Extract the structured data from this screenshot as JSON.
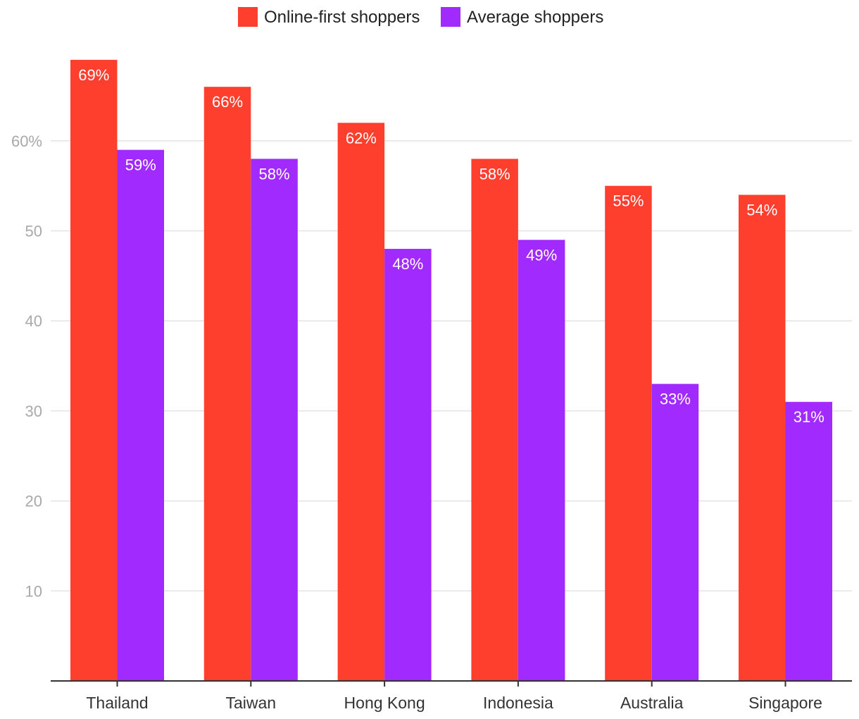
{
  "chart_data": {
    "type": "bar",
    "title": "",
    "xlabel": "",
    "ylabel": "",
    "categories": [
      "Thailand",
      "Taiwan",
      "Hong Kong",
      "Indonesia",
      "Australia",
      "Singapore"
    ],
    "series": [
      {
        "name": "Online-first shoppers",
        "color": "#ff3f2e",
        "values": [
          69,
          66,
          62,
          58,
          55,
          54
        ],
        "labels": [
          "69%",
          "66%",
          "62%",
          "58%",
          "55%",
          "54%"
        ]
      },
      {
        "name": "Average shoppers",
        "color": "#a12bff",
        "values": [
          59,
          58,
          48,
          49,
          33,
          31
        ],
        "labels": [
          "59%",
          "58%",
          "48%",
          "49%",
          "33%",
          "31%"
        ]
      }
    ],
    "yticks": [
      10,
      20,
      30,
      40,
      50,
      60
    ],
    "ytick_labels": [
      "10",
      "20",
      "30",
      "40",
      "50",
      "60%"
    ],
    "ylim": [
      0,
      75.6
    ],
    "grid": true,
    "legend_position": "top-center"
  }
}
